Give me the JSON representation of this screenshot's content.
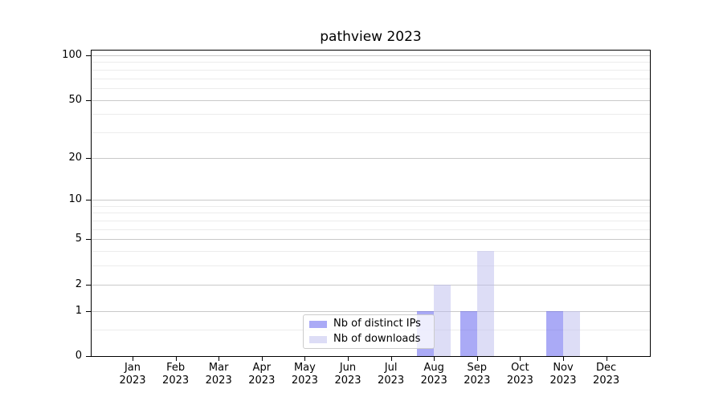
{
  "chart_data": {
    "type": "bar",
    "title": "pathview 2023",
    "year": "2023",
    "categories": [
      "Jan",
      "Feb",
      "Mar",
      "Apr",
      "May",
      "Jun",
      "Jul",
      "Aug",
      "Sep",
      "Oct",
      "Nov",
      "Dec"
    ],
    "series": [
      {
        "name": "Nb of distinct IPs",
        "values": [
          0,
          0,
          0,
          0,
          0,
          0,
          0,
          1,
          1,
          0,
          1,
          0
        ],
        "color": "rgba(85,85,238,0.5)"
      },
      {
        "name": "Nb of downloads",
        "values": [
          0,
          0,
          0,
          0,
          0,
          0,
          0,
          2,
          4,
          0,
          1,
          0
        ],
        "color": "rgba(187,187,238,0.5)"
      }
    ],
    "yscale": "log1p",
    "ylabel": "",
    "xlabel": "",
    "ytick_values": [
      0,
      1,
      2,
      5,
      10,
      20,
      50,
      100
    ],
    "minor_gridline_values": [
      0.5,
      3,
      4,
      6,
      7,
      8,
      9,
      30,
      40,
      60,
      70,
      80,
      90
    ],
    "ylim": [
      0,
      110
    ],
    "grid": true,
    "legend_position": "bottom-center"
  },
  "colors": {
    "grid_major": "#c9c9c9",
    "grid_minor": "#ececec",
    "axis": "#000000",
    "text": "#000000",
    "legend_border": "#cccccc",
    "legend_bg": "rgba(255,255,255,0.8)"
  }
}
